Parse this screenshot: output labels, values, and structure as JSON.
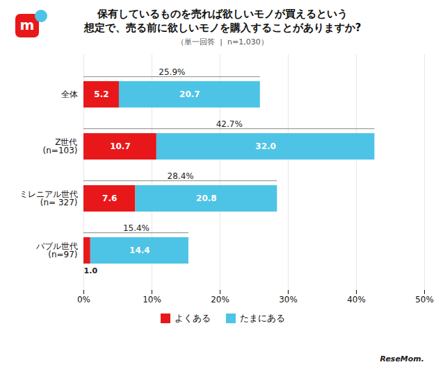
{
  "chart_data": {
    "type": "bar",
    "orientation": "horizontal",
    "stacked": true,
    "data_labels": true,
    "grid": true,
    "legend": "bottom",
    "title": "保有しているものを売れば欲しいモノが買えるという\n想定で、売る前に欲しいモノを購入することがありますか?",
    "subtitle": "（単一回答  |  n=1,030）",
    "categories": [
      "全体",
      "Z世代\n(n=103)",
      "ミレニアル世代\n(n= 327)",
      "バブル世代\n(n=97)"
    ],
    "series": [
      {
        "name": "よくある",
        "color": "#e8181a",
        "values": [
          5.2,
          10.7,
          7.6,
          1.0
        ],
        "value_labels": [
          "5.2",
          "10.7",
          "7.6",
          "1.0"
        ]
      },
      {
        "name": "たまにある",
        "color": "#4dc4e6",
        "values": [
          20.7,
          32.0,
          20.8,
          14.4
        ],
        "value_labels": [
          "20.7",
          "32.0",
          "20.8",
          "14.4"
        ]
      }
    ],
    "totals": [
      25.9,
      42.7,
      28.4,
      15.4
    ],
    "total_labels": [
      "25.9%",
      "42.7%",
      "28.4%",
      "15.4%"
    ],
    "xlim": [
      0,
      50
    ],
    "xticks": [
      {
        "value": 0,
        "label": "0%"
      },
      {
        "value": 10,
        "label": "10%"
      },
      {
        "value": 20,
        "label": "20%"
      },
      {
        "value": 30,
        "label": "30%"
      },
      {
        "value": 40,
        "label": "40%"
      },
      {
        "value": 50,
        "label": "50%"
      }
    ],
    "caption": "ReseMom.",
    "logo": "m"
  }
}
